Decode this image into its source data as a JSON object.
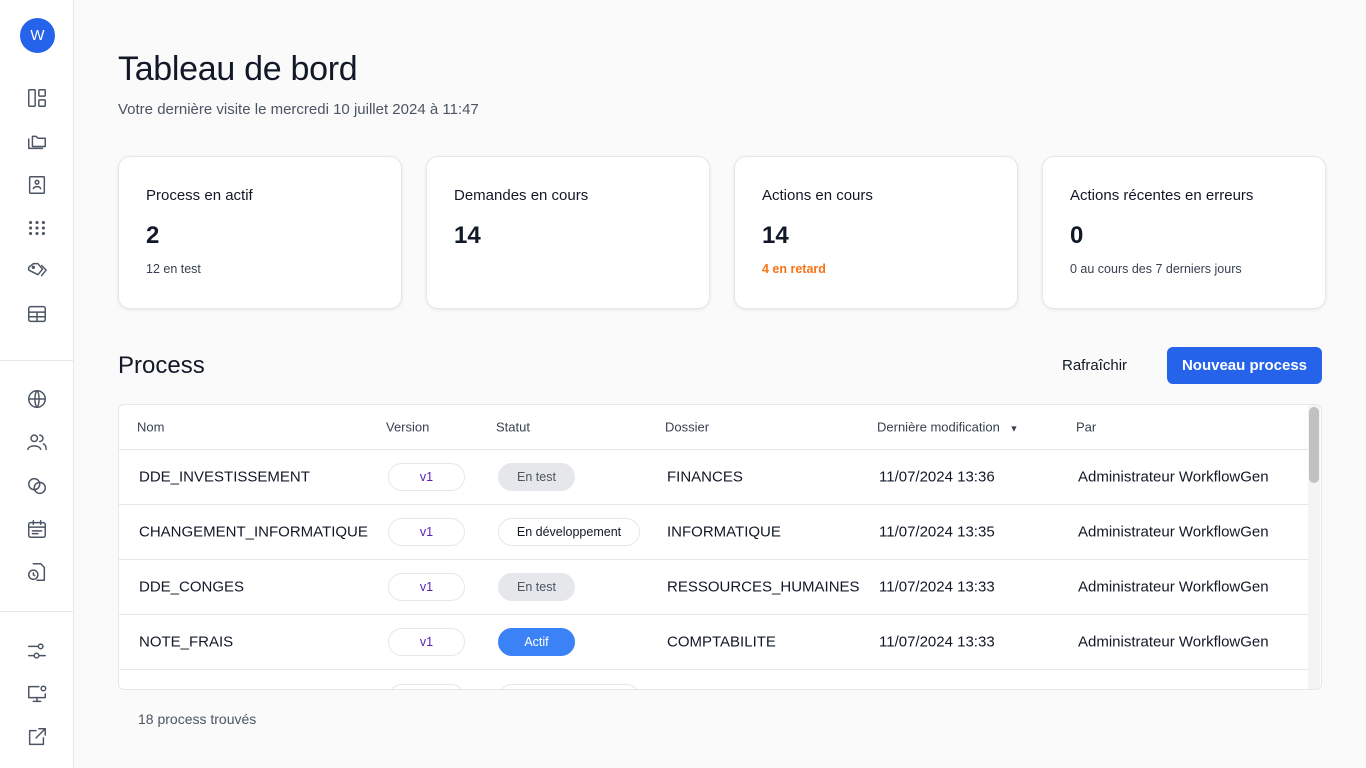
{
  "sidebar": {
    "avatar": "W",
    "icons_top": [
      "dashboard-icon",
      "folders-icon",
      "contact-book-icon",
      "apps-grid-icon",
      "tags-icon",
      "table-icon"
    ],
    "icons_mid": [
      "globe-icon",
      "users-icon",
      "circles-icon",
      "calendar-icon",
      "clock-file-icon"
    ],
    "icons_bottom": [
      "sliders-icon",
      "monitor-user-icon",
      "external-link-icon"
    ]
  },
  "header": {
    "title": "Tableau de bord",
    "subtitle": "Votre dernière visite le mercredi 10 juillet 2024 à 11:47"
  },
  "cards": [
    {
      "title": "Process en actif",
      "value": "2",
      "sub": "12 en test"
    },
    {
      "title": "Demandes en cours",
      "value": "14",
      "sub": ""
    },
    {
      "title": "Actions en cours",
      "value": "14",
      "sub": "4 en retard",
      "sub_color": "#f97316"
    },
    {
      "title": "Actions récentes en erreurs",
      "value": "0",
      "sub": "0 au cours des 7 derniers jours"
    }
  ],
  "process": {
    "title": "Process",
    "refresh_label": "Rafraîchir",
    "new_label": "Nouveau process",
    "columns": [
      "Nom",
      "Version",
      "Statut",
      "Dossier",
      "Dernière modification",
      "Par"
    ],
    "sort_column": "Dernière modification",
    "sort_dir": "desc",
    "rows": [
      {
        "name": "DDE_INVESTISSEMENT",
        "version": "v1",
        "status": "En test",
        "folder": "FINANCES",
        "modified": "11/07/2024 13:36",
        "by": "Administrateur WorkflowGen"
      },
      {
        "name": "CHANGEMENT_INFORMATIQUE",
        "version": "v1",
        "status": "En développement",
        "folder": "INFORMATIQUE",
        "modified": "11/07/2024 13:35",
        "by": "Administrateur WorkflowGen"
      },
      {
        "name": "DDE_CONGES",
        "version": "v1",
        "status": "En test",
        "folder": "RESSOURCES_HUMAINES",
        "modified": "11/07/2024 13:33",
        "by": "Administrateur WorkflowGen"
      },
      {
        "name": "NOTE_FRAIS",
        "version": "v1",
        "status": "Actif",
        "folder": "COMPTABILITE",
        "modified": "11/07/2024 13:33",
        "by": "Administrateur WorkflowGen"
      }
    ],
    "footer": "18 process trouvés"
  },
  "colors": {
    "accent": "#2563eb",
    "active": "#3b82f6",
    "warning": "#f97316"
  }
}
